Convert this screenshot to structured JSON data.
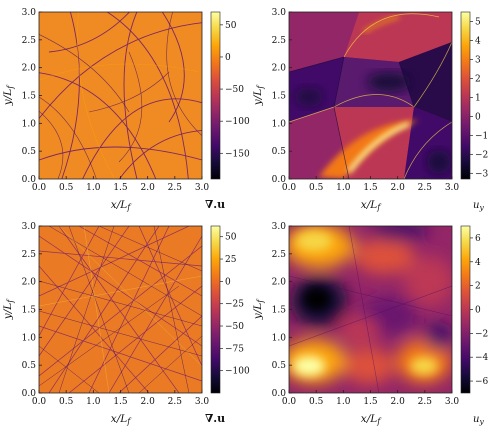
{
  "chart_data": [
    {
      "type": "heatmap",
      "panel": "top-left",
      "xlabel": "x/L_f",
      "ylabel": "y/L_f",
      "xlim": [
        0.0,
        3.0
      ],
      "ylim": [
        0.0,
        3.0
      ],
      "x_ticks": [
        "0.0",
        "0.5",
        "1.0",
        "1.5",
        "2.0",
        "2.5",
        "3.0"
      ],
      "y_ticks": [
        "0.0",
        "0.5",
        "1.0",
        "1.5",
        "2.0",
        "2.5",
        "3.0"
      ],
      "colorbar_label": "∇.u",
      "colorbar_range": [
        -190,
        70
      ],
      "colorbar_ticks": [
        "50",
        "0",
        "−50",
        "−100",
        "−150"
      ],
      "colorbar_tick_values": [
        50,
        0,
        -50,
        -100,
        -150
      ],
      "colormap": "inferno",
      "description": "nearly uniform orange field (~0) with thin dark curved shock lines"
    },
    {
      "type": "heatmap",
      "panel": "top-right",
      "xlabel": "x/L_f",
      "ylabel": "y/L_f",
      "xlim": [
        0.0,
        3.0
      ],
      "ylim": [
        0.0,
        3.0
      ],
      "x_ticks": [
        "0.0",
        "0.5",
        "1.0",
        "1.5",
        "2.0",
        "2.5",
        "3.0"
      ],
      "y_ticks": [
        "0.0",
        "0.5",
        "1.0",
        "1.5",
        "2.0",
        "2.5",
        "3.0"
      ],
      "colorbar_label": "u_y",
      "colorbar_range": [
        -3.3,
        5.5
      ],
      "colorbar_ticks": [
        "5",
        "4",
        "3",
        "2",
        "1",
        "0",
        "−1",
        "−2",
        "−3"
      ],
      "colorbar_tick_values": [
        5,
        4,
        3,
        2,
        1,
        0,
        -1,
        -2,
        -3
      ],
      "colormap": "inferno",
      "description": "purple regions separated by sharp shock fronts, bright yellow streak near lower centre"
    },
    {
      "type": "heatmap",
      "panel": "bottom-left",
      "xlabel": "x/L_f",
      "ylabel": "y/L_f",
      "xlim": [
        0.0,
        3.0
      ],
      "ylim": [
        0.0,
        3.0
      ],
      "x_ticks": [
        "0.0",
        "0.5",
        "1.0",
        "1.5",
        "2.0",
        "2.5",
        "3.0"
      ],
      "y_ticks": [
        "0.0",
        "0.5",
        "1.0",
        "1.5",
        "2.0",
        "2.5",
        "3.0"
      ],
      "colorbar_label": "∇.u",
      "colorbar_range": [
        -125,
        62
      ],
      "colorbar_ticks": [
        "50",
        "25",
        "0",
        "−25",
        "−50",
        "−75",
        "−100"
      ],
      "colorbar_tick_values": [
        50,
        25,
        0,
        -25,
        -50,
        -75,
        -100
      ],
      "colormap": "inferno",
      "description": "orange field densely crossed by straight dark shock lines"
    },
    {
      "type": "heatmap",
      "panel": "bottom-right",
      "xlabel": "x/L_f",
      "ylabel": "y/L_f",
      "xlim": [
        0.0,
        3.0
      ],
      "ylim": [
        0.0,
        3.0
      ],
      "x_ticks": [
        "0.0",
        "0.5",
        "1.0",
        "1.5",
        "2.0",
        "2.5",
        "3.0"
      ],
      "y_ticks": [
        "0.0",
        "0.5",
        "1.0",
        "1.5",
        "2.0",
        "2.5",
        "3.0"
      ],
      "colorbar_label": "u_y",
      "colorbar_range": [
        -7,
        7
      ],
      "colorbar_ticks": [
        "6",
        "4",
        "2",
        "0",
        "−2",
        "−4",
        "−6"
      ],
      "colorbar_tick_values": [
        6,
        4,
        2,
        0,
        -2,
        -4,
        -6
      ],
      "colormap": "inferno",
      "description": "patchy field with bright yellow blobs and dark purple pockets"
    }
  ]
}
